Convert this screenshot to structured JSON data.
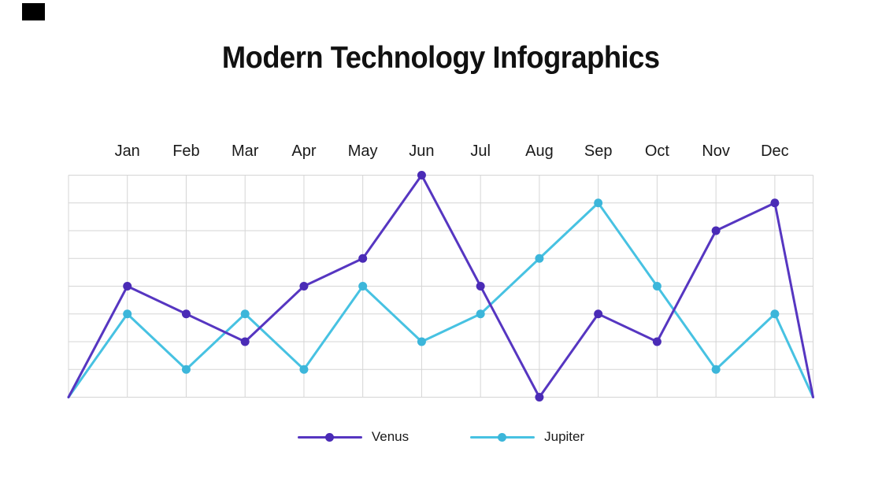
{
  "page": {
    "title": "Modern Technology Infographics"
  },
  "decor": {
    "corner_square_color": "#000000"
  },
  "chart_data": {
    "type": "line",
    "title": "Modern Technology Infographics",
    "categories": [
      "Jan",
      "Feb",
      "Mar",
      "Apr",
      "May",
      "Jun",
      "Jul",
      "Aug",
      "Sep",
      "Oct",
      "Nov",
      "Dec"
    ],
    "series": [
      {
        "name": "Venus",
        "color": "#5636c1",
        "dot_color": "#4a2bb6",
        "values": [
          4,
          3,
          2,
          4,
          5,
          8,
          4,
          0,
          3,
          2,
          6,
          7
        ]
      },
      {
        "name": "Jupiter",
        "color": "#47c2e2",
        "dot_color": "#3cb6da",
        "values": [
          3,
          1,
          3,
          1,
          4,
          2,
          3,
          5,
          7,
          4,
          1,
          3
        ]
      }
    ],
    "edge_anchors": {
      "left": 0,
      "right": 0
    },
    "ylim": [
      0,
      8
    ],
    "grid": {
      "rows": 8,
      "color": "#d5d5d5",
      "on": true
    },
    "legend_position": "bottom",
    "x_axis_position": "top"
  }
}
